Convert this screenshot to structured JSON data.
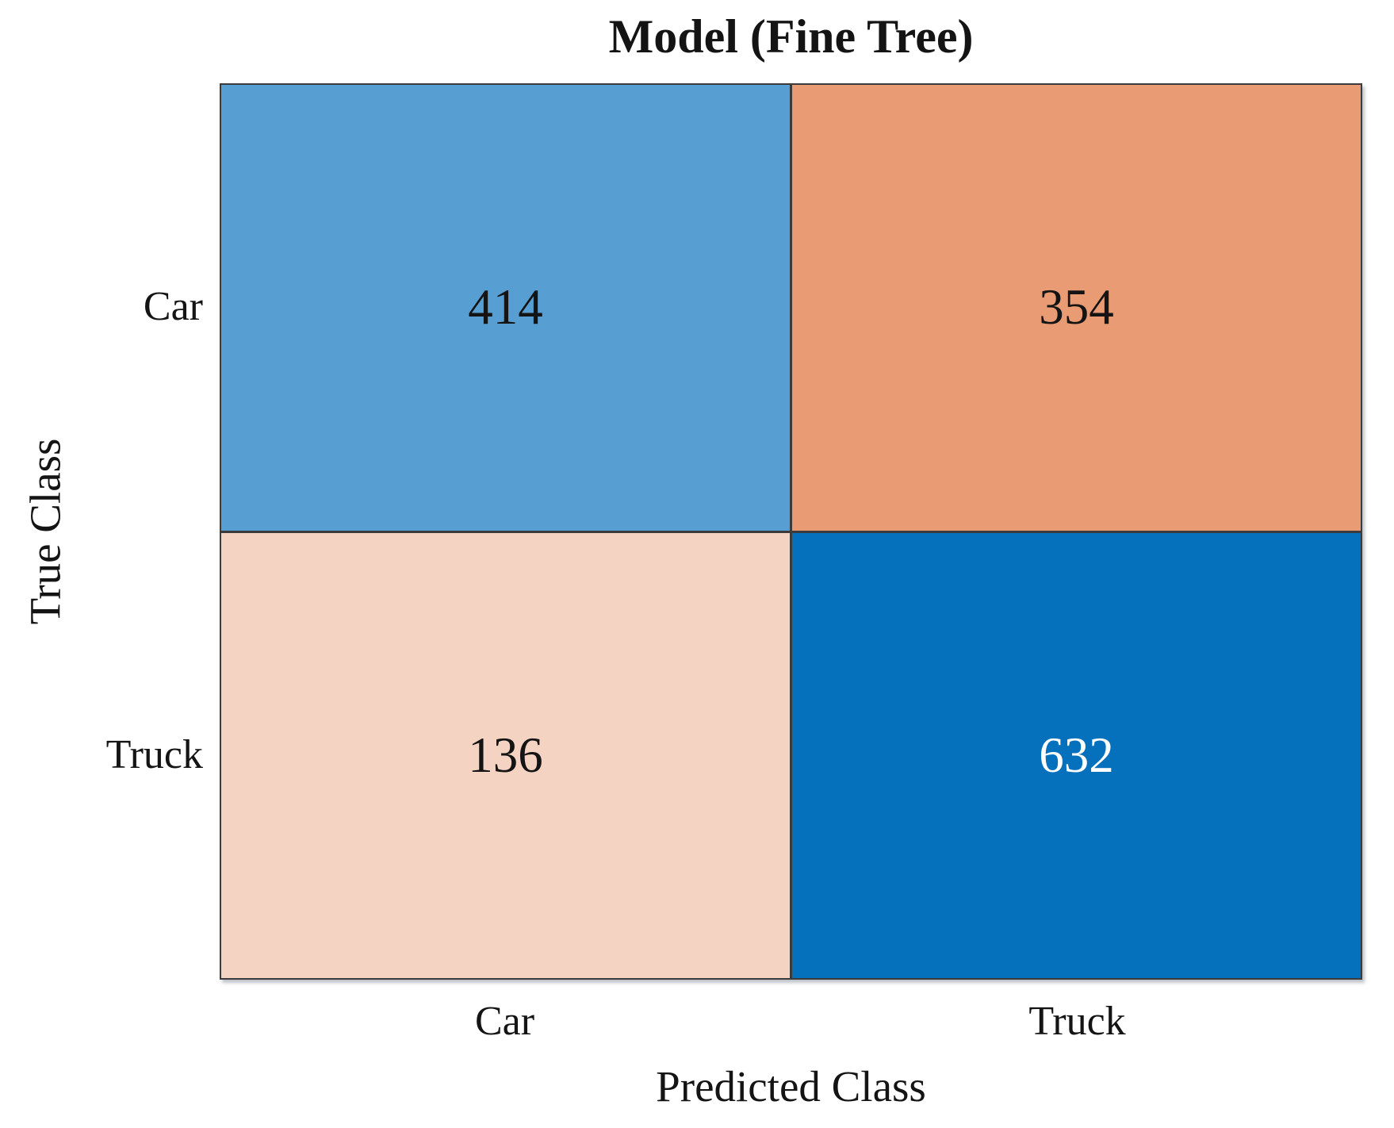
{
  "chart_data": {
    "type": "heatmap",
    "subtype": "confusion-matrix",
    "title": "Model (Fine Tree)",
    "xlabel": "Predicted Class",
    "ylabel": "True Class",
    "x_categories": [
      "Car",
      "Truck"
    ],
    "y_categories": [
      "Car",
      "Truck"
    ],
    "matrix": [
      [
        414,
        354
      ],
      [
        136,
        632
      ]
    ],
    "cells": [
      {
        "true_class": "Car",
        "predicted_class": "Car",
        "value": "414",
        "bg": "#579fd3",
        "fg": "#141414"
      },
      {
        "true_class": "Car",
        "predicted_class": "Truck",
        "value": "354",
        "bg": "#e99b74",
        "fg": "#141414"
      },
      {
        "true_class": "Truck",
        "predicted_class": "Car",
        "value": "136",
        "bg": "#f5d3c2",
        "fg": "#141414"
      },
      {
        "true_class": "Truck",
        "predicted_class": "Truck",
        "value": "632",
        "bg": "#0571bd",
        "fg": "#ffffff"
      }
    ],
    "grid_color": "#3b3b3b",
    "background_color": "#ffffff",
    "legend": "none",
    "layout": {
      "rows": 2,
      "cols": 2,
      "title_position": "top-center",
      "ylabel_rotation_deg": -90
    }
  }
}
